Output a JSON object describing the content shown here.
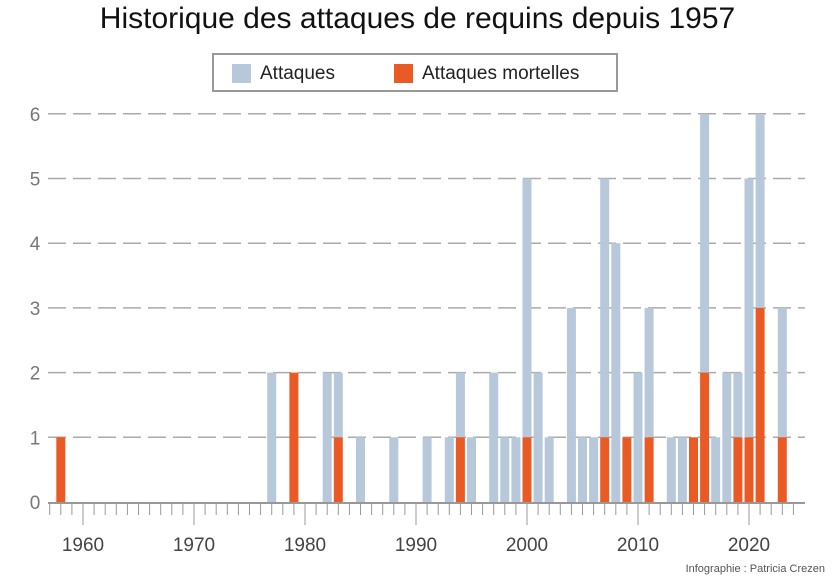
{
  "chart_data": {
    "type": "bar",
    "title": "Historique des attaques de requins depuis 1957",
    "legend": [
      {
        "name": "Attaques",
        "color": "#b6c8da"
      },
      {
        "name": "Attaques mortelles",
        "color": "#ea5a24"
      }
    ],
    "legend_placement": "top-center",
    "xlabel": "",
    "ylabel": "",
    "xlim": [
      1957,
      2024
    ],
    "ylim": [
      0,
      6
    ],
    "yticks": [
      "0",
      "1",
      "2",
      "3",
      "4",
      "5",
      "6"
    ],
    "xticks": [
      "1960",
      "1970",
      "1980",
      "1990",
      "2000",
      "2010",
      "2020"
    ],
    "grid": true,
    "years": [
      1958,
      1977,
      1979,
      1982,
      1983,
      1985,
      1988,
      1991,
      1993,
      1994,
      1995,
      1997,
      1998,
      1999,
      2000,
      2001,
      2002,
      2004,
      2005,
      2006,
      2007,
      2008,
      2009,
      2010,
      2011,
      2013,
      2014,
      2015,
      2016,
      2017,
      2018,
      2019,
      2020,
      2021,
      2023
    ],
    "series": [
      {
        "name": "Attaques",
        "values": [
          1,
          2,
          2,
          2,
          2,
          1,
          1,
          1,
          1,
          2,
          1,
          2,
          1,
          1,
          5,
          2,
          1,
          3,
          1,
          1,
          5,
          4,
          1,
          2,
          3,
          1,
          1,
          1,
          6,
          1,
          2,
          2,
          5,
          6,
          3
        ]
      },
      {
        "name": "Attaques mortelles",
        "values": [
          1,
          0,
          2,
          0,
          1,
          0,
          0,
          0,
          0,
          1,
          0,
          0,
          0,
          0,
          1,
          0,
          0,
          0,
          0,
          0,
          1,
          0,
          1,
          0,
          1,
          0,
          0,
          1,
          2,
          0,
          0,
          1,
          1,
          3,
          1
        ]
      }
    ]
  },
  "credit": "Infographie : Patricia Crezen"
}
